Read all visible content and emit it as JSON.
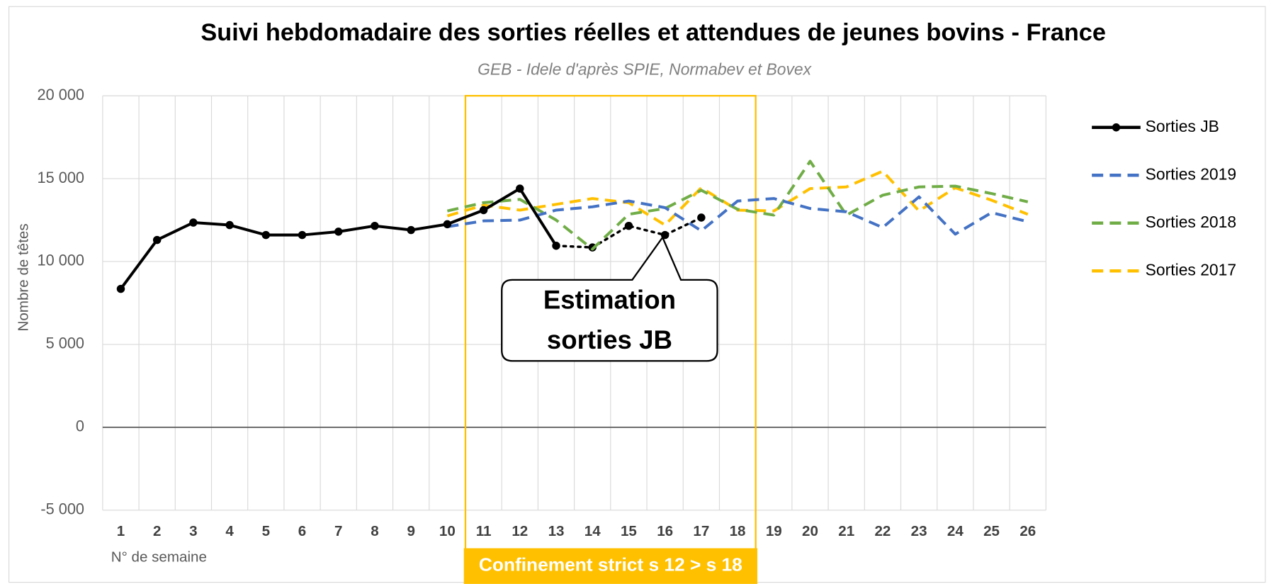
{
  "chart_data": {
    "type": "line",
    "title": "Suivi hebdomadaire des sorties réelles et attendues de jeunes  bovins - France",
    "subtitle": "GEB - Idele d'après SPIE, Normabev et Bovex",
    "y_label": "Nombre de têtes",
    "x_label": "N° de semaine",
    "categories": [
      "1",
      "2",
      "3",
      "4",
      "5",
      "6",
      "7",
      "8",
      "9",
      "10",
      "11",
      "12",
      "13",
      "14",
      "15",
      "16",
      "17",
      "18",
      "19",
      "20",
      "21",
      "22",
      "23",
      "24",
      "25",
      "26"
    ],
    "ylim": [
      -5000,
      20000
    ],
    "yticks": [
      {
        "value": -5000,
        "label": "-5 000"
      },
      0,
      {
        "value": 5000,
        "label": "5 000"
      },
      {
        "value": 10000,
        "label": "10 000"
      },
      {
        "value": 15000,
        "label": "15 000"
      },
      {
        "value": 20000,
        "label": "20 000"
      }
    ],
    "grid": true,
    "legend": "right",
    "series": [
      {
        "name": "Sorties JB",
        "color": "#000000",
        "style": "solid",
        "markers": true,
        "values": [
          8350,
          11300,
          12350,
          12200,
          11600,
          11600,
          11800,
          12150,
          11900,
          12250,
          13100,
          14400,
          10950,
          null,
          null,
          null,
          null,
          null,
          null,
          null,
          null,
          null,
          null,
          null,
          null,
          null
        ]
      },
      {
        "name": "Sorties 2019",
        "color": "#4472c4",
        "style": "dashed",
        "markers": false,
        "values": [
          null,
          null,
          null,
          null,
          null,
          null,
          null,
          null,
          null,
          12100,
          12450,
          12500,
          13100,
          13300,
          13650,
          13250,
          11850,
          13650,
          13800,
          13200,
          13000,
          12050,
          13900,
          11650,
          12950,
          12400
        ]
      },
      {
        "name": "Sorties 2018",
        "color": "#70ad47",
        "style": "dashed",
        "markers": false,
        "values": [
          null,
          null,
          null,
          null,
          null,
          null,
          null,
          null,
          null,
          13050,
          13550,
          13750,
          12500,
          10750,
          12850,
          13200,
          14300,
          13150,
          12800,
          16050,
          12800,
          14000,
          14500,
          14550,
          14100,
          13600
        ]
      },
      {
        "name": "Sorties 2017",
        "color": "#ffc000",
        "style": "dashed",
        "markers": false,
        "values": [
          null,
          null,
          null,
          null,
          null,
          null,
          null,
          null,
          null,
          12750,
          13400,
          13100,
          13450,
          13800,
          13550,
          12200,
          14450,
          13100,
          13050,
          14400,
          14500,
          15450,
          13050,
          14450,
          13700,
          12850
        ]
      }
    ],
    "estimation": {
      "text": "Estimation sorties JB",
      "color": "#000000",
      "style": "dotted",
      "x": [
        "14",
        "15",
        "16",
        "17"
      ],
      "values": [
        10850,
        12150,
        11600,
        12650
      ]
    },
    "highlight": {
      "label": "Confinement strict s 12 > s 18",
      "color": "#ffc000",
      "from": "11",
      "to": "18"
    }
  }
}
